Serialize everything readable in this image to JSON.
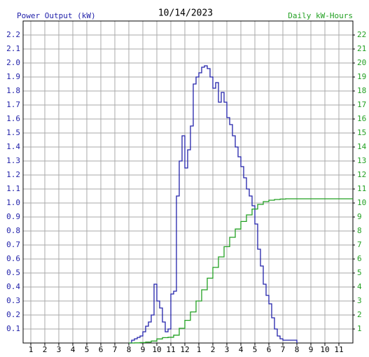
{
  "chart_data": {
    "type": "line",
    "step": true,
    "title": "10/14/2023",
    "ylabel": "Power Output (kW)",
    "y2label": "Daily kW-Hours",
    "grid": true,
    "xlim": [
      0.45,
      24
    ],
    "xticks": [
      1,
      2,
      3,
      4,
      5,
      6,
      7,
      8,
      9,
      10,
      11,
      12,
      {
        "value": 13,
        "label": "1"
      },
      {
        "value": 14,
        "label": "2"
      },
      {
        "value": 15,
        "label": "3"
      },
      {
        "value": 16,
        "label": "4"
      },
      {
        "value": 17,
        "label": "5"
      },
      {
        "value": 18,
        "label": "6"
      },
      {
        "value": 19,
        "label": "7"
      },
      {
        "value": 20,
        "label": "8"
      },
      {
        "value": 21,
        "label": "9"
      },
      {
        "value": 22,
        "label": "10"
      },
      {
        "value": 23,
        "label": "11"
      }
    ],
    "ylim": [
      0,
      2.3
    ],
    "yticks": [
      0.1,
      0.2,
      0.3,
      0.4,
      0.5,
      0.6,
      0.7,
      0.8,
      0.9,
      {
        "value": 1,
        "label": "1.0"
      },
      1.1,
      1.2,
      1.3,
      1.4,
      1.5,
      1.6,
      1.7,
      1.8,
      1.9,
      {
        "value": 2,
        "label": "2.0"
      },
      2.1,
      2.2
    ],
    "y2lim": [
      0,
      23
    ],
    "y2ticks": [
      1,
      2,
      3,
      4,
      5,
      6,
      7,
      8,
      9,
      10,
      11,
      12,
      13,
      14,
      15,
      16,
      17,
      18,
      19,
      20,
      21,
      22
    ],
    "series": [
      {
        "name": "Power Output (kW)",
        "color": "#2222aa",
        "axis": "y",
        "x": [
          8,
          8.2,
          8.4,
          8.6,
          8.8,
          9,
          9.2,
          9.4,
          9.6,
          9.8,
          10,
          10.2,
          10.4,
          10.6,
          10.8,
          11,
          11.2,
          11.4,
          11.6,
          11.8,
          12,
          12.2,
          12.4,
          12.6,
          12.8,
          13,
          13.2,
          13.4,
          13.6,
          13.8,
          14,
          14.2,
          14.4,
          14.6,
          14.8,
          15,
          15.2,
          15.4,
          15.6,
          15.8,
          16,
          16.2,
          16.4,
          16.6,
          16.8,
          17,
          17.2,
          17.4,
          17.6,
          17.8,
          18,
          18.2,
          18.4,
          18.6,
          18.8,
          19,
          19.2,
          19.4,
          19.6,
          19.8,
          20
        ],
        "values": [
          0,
          0.02,
          0.03,
          0.04,
          0.05,
          0.08,
          0.12,
          0.15,
          0.2,
          0.42,
          0.3,
          0.25,
          0.15,
          0.08,
          0.1,
          0.35,
          0.37,
          1.05,
          1.3,
          1.48,
          1.25,
          1.38,
          1.55,
          1.85,
          1.9,
          1.93,
          1.97,
          1.98,
          1.96,
          1.9,
          1.82,
          1.86,
          1.72,
          1.79,
          1.72,
          1.61,
          1.56,
          1.48,
          1.4,
          1.33,
          1.26,
          1.18,
          1.1,
          1.05,
          0.98,
          0.85,
          0.67,
          0.55,
          0.42,
          0.34,
          0.28,
          0.18,
          0.1,
          0.05,
          0.03,
          0.02,
          0.02,
          0.02,
          0.02,
          0.02,
          0
        ]
      },
      {
        "name": "Daily kW-Hours",
        "color": "#22a022",
        "axis": "y2",
        "x": [
          8,
          8.4,
          8.8,
          9.2,
          9.6,
          10,
          10.4,
          10.8,
          11.2,
          11.6,
          12,
          12.4,
          12.8,
          13.2,
          13.6,
          14,
          14.4,
          14.8,
          15.2,
          15.6,
          16,
          16.4,
          16.8,
          17.2,
          17.6,
          18,
          18.4,
          18.8,
          19.2,
          20,
          24
        ],
        "values": [
          0,
          0.01,
          0.03,
          0.07,
          0.14,
          0.29,
          0.38,
          0.41,
          0.56,
          1.05,
          1.62,
          2.22,
          3.0,
          3.8,
          4.63,
          5.4,
          6.15,
          6.88,
          7.55,
          8.14,
          8.68,
          9.15,
          9.57,
          9.9,
          10.1,
          10.2,
          10.25,
          10.28,
          10.3,
          10.3,
          10.3
        ]
      }
    ]
  }
}
